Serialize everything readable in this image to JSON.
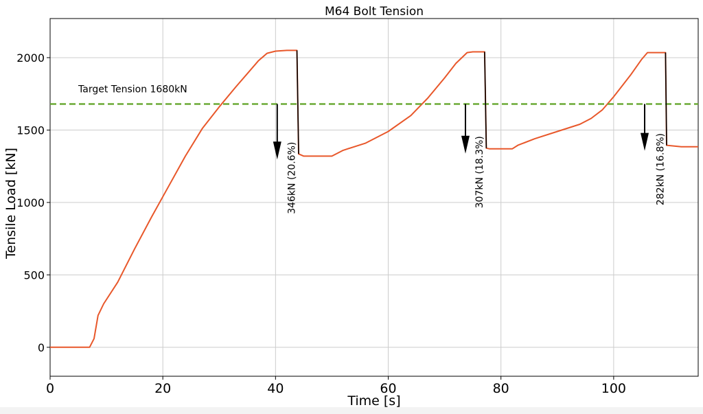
{
  "chart_data": {
    "type": "line",
    "title": "M64 Bolt Tension",
    "xlabel": "Time [s]",
    "ylabel": "Tensile Load [kN]",
    "xlim": [
      0,
      115
    ],
    "ylim": [
      -200,
      2270
    ],
    "xticks": [
      0,
      20,
      40,
      60,
      80,
      100
    ],
    "yticks": [
      0,
      500,
      1000,
      1500,
      2000
    ],
    "xtick_labels": [
      "0",
      "20",
      "40",
      "60",
      "80",
      "100"
    ],
    "ytick_labels": [
      "0",
      "500",
      "1000",
      "1500",
      "2000"
    ],
    "grid": true,
    "series": [
      {
        "color": "#e8572a",
        "x": [
          0,
          7,
          7.8,
          8.5,
          9.5,
          12,
          15,
          18,
          21,
          24,
          27,
          30,
          33,
          35,
          37,
          38.5,
          40,
          42,
          43.8,
          44.1,
          45,
          48,
          50,
          52,
          56,
          60,
          64,
          67,
          70,
          72,
          74,
          75,
          77.1,
          77.4,
          78,
          82,
          83,
          86,
          90,
          94,
          96,
          98,
          100,
          103,
          105,
          106,
          108,
          109.2,
          109.4,
          112,
          115
        ],
        "y": [
          0,
          0,
          60,
          220,
          300,
          450,
          680,
          900,
          1110,
          1320,
          1510,
          1660,
          1800,
          1890,
          1980,
          2030,
          2045,
          2050,
          2050,
          1335,
          1320,
          1320,
          1320,
          1360,
          1410,
          1490,
          1600,
          1720,
          1860,
          1960,
          2035,
          2040,
          2040,
          1375,
          1370,
          1370,
          1395,
          1440,
          1490,
          1540,
          1580,
          1640,
          1730,
          1880,
          1990,
          2035,
          2035,
          2035,
          1395,
          1385,
          1385
        ]
      }
    ],
    "target_line": {
      "y": 1680,
      "color": "#6aaa35",
      "label": "Target Tension 1680kN"
    },
    "drops": [
      {
        "x_start": 43.8,
        "x_end": 44.1,
        "arrow_x": 40.3,
        "label": "346kN (20.6%)"
      },
      {
        "x_start": 77.1,
        "x_end": 77.4,
        "arrow_x": 73.7,
        "label": "307kN (18.3%)"
      },
      {
        "x_start": 109.2,
        "x_end": 109.4,
        "arrow_x": 105.5,
        "label": "282kN (16.8%)"
      }
    ]
  }
}
